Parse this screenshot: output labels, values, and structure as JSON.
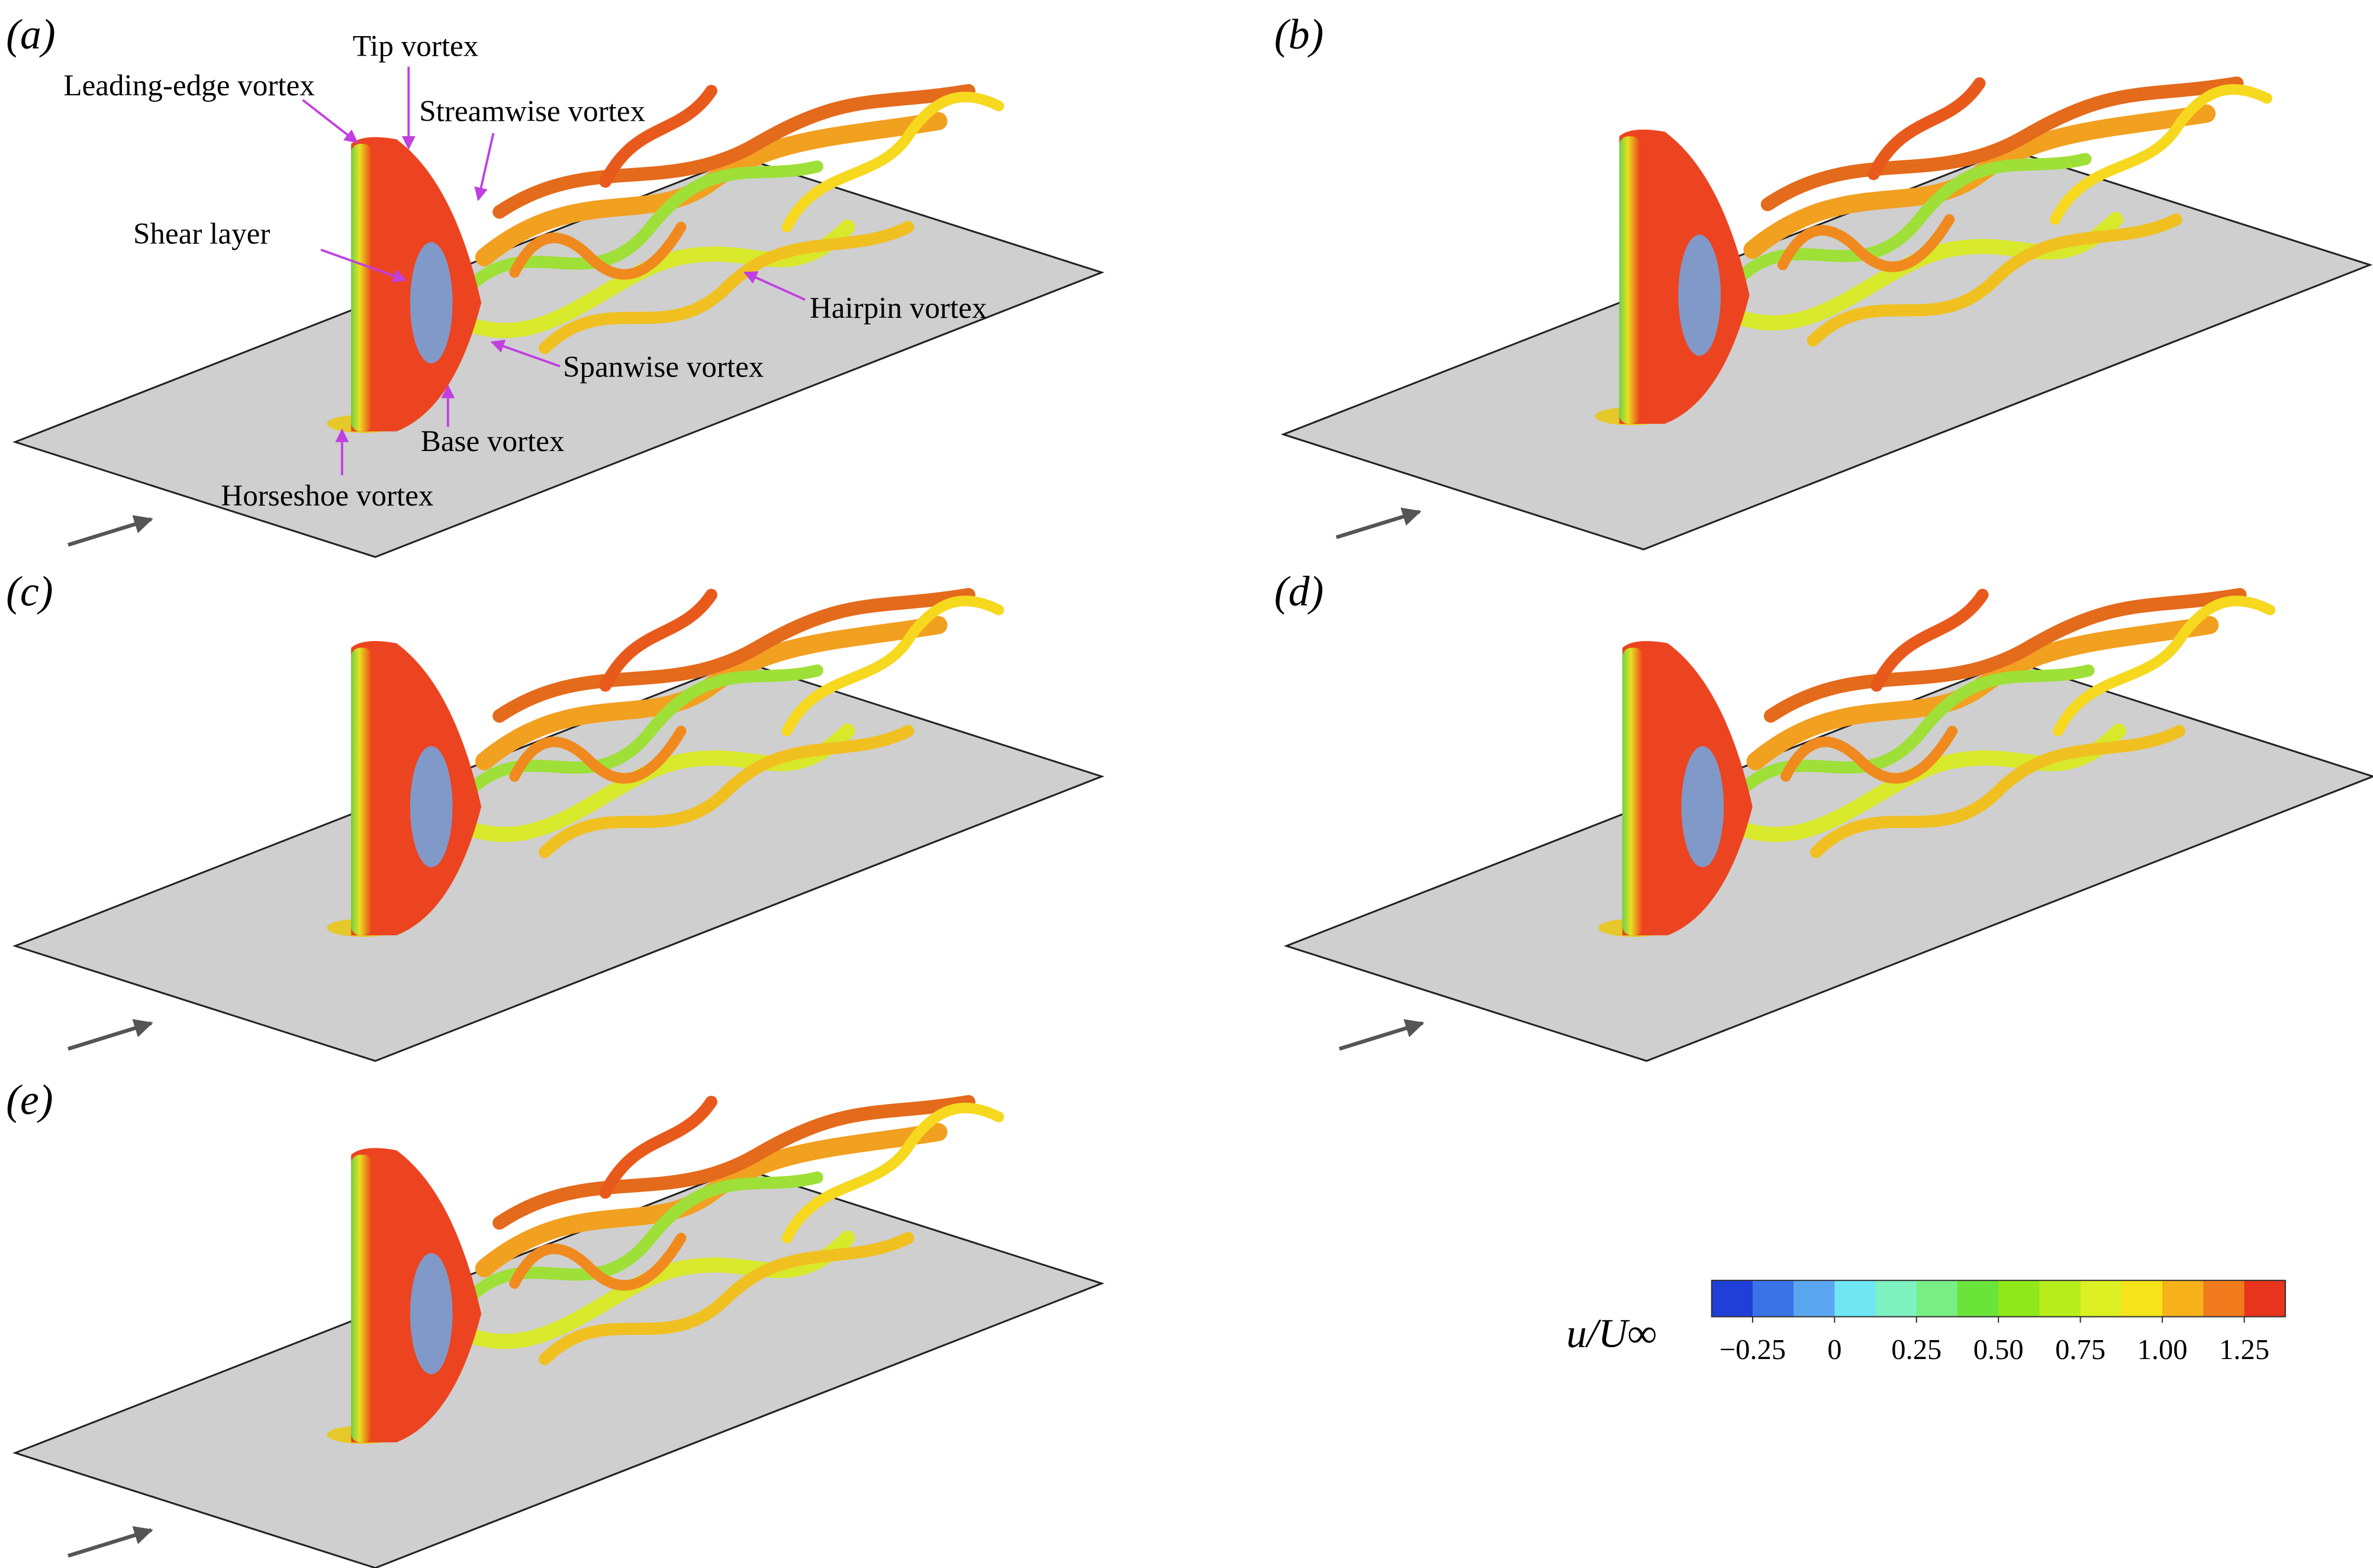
{
  "panels": [
    {
      "label": "(a)"
    },
    {
      "label": "(b)"
    },
    {
      "label": "(c)"
    },
    {
      "label": "(d)"
    },
    {
      "label": "(e)"
    }
  ],
  "annotations": [
    {
      "text": "Leading-edge vortex"
    },
    {
      "text": "Tip vortex"
    },
    {
      "text": "Streamwise vortex"
    },
    {
      "text": "Shear layer"
    },
    {
      "text": "Hairpin vortex"
    },
    {
      "text": "Spanwise vortex"
    },
    {
      "text": "Base vortex"
    },
    {
      "text": "Horseshoe vortex"
    }
  ],
  "colorbar": {
    "label": "u/U∞",
    "range": [
      -0.375,
      1.375
    ],
    "colors": [
      "#1f3fd8",
      "#3a73e8",
      "#5aa6f0",
      "#6fe6f2",
      "#7ef2c0",
      "#78ee84",
      "#6be43a",
      "#8fe81a",
      "#b8ee1c",
      "#dcf024",
      "#f6e41a",
      "#f7b21a",
      "#f07a1c",
      "#e8341c"
    ],
    "ticks": [
      {
        "value": -0.25,
        "label": "−0.25"
      },
      0,
      0.25,
      {
        "value": 0.5,
        "label": "0.50"
      },
      {
        "value": 0.75,
        "label": "0.75"
      },
      {
        "value": 1,
        "label": "1.00"
      },
      1.25
    ]
  }
}
